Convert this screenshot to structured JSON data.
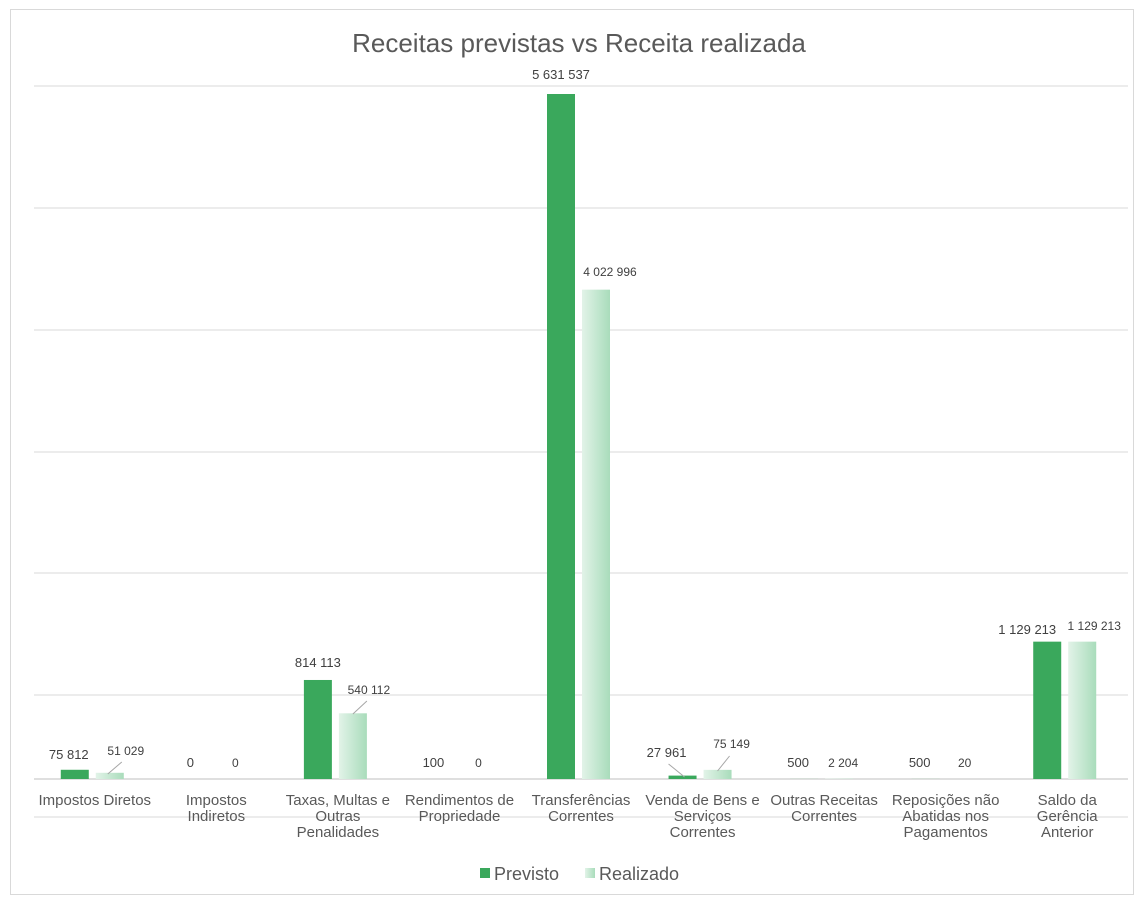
{
  "chart_data": {
    "type": "bar",
    "title": "Receitas previstas vs Receita realizada",
    "xlabel": "",
    "ylabel": "",
    "ylim": [
      0,
      5631537
    ],
    "grid": true,
    "legend_position": "bottom",
    "categories": [
      [
        "Impostos Diretos"
      ],
      [
        "Impostos",
        "Indiretos"
      ],
      [
        "Taxas, Multas e",
        "Outras",
        "Penalidades"
      ],
      [
        "Rendimentos de",
        "Propriedade"
      ],
      [
        "Transferências",
        "Correntes"
      ],
      [
        "Venda de Bens e",
        "Serviços",
        "Correntes"
      ],
      [
        "Outras Receitas",
        "Correntes"
      ],
      [
        "Reposições não",
        "Abatidas nos",
        "Pagamentos"
      ],
      [
        "Saldo da",
        "Gerência",
        "Anterior"
      ]
    ],
    "series": [
      {
        "name": "Previsto",
        "color": "#3aa85c",
        "values": [
          75812,
          0,
          814113,
          100,
          5631537,
          27961,
          500,
          500,
          1129213
        ],
        "labels": [
          "75 812",
          "0",
          "814 113",
          "100",
          "5 631 537",
          "27 961",
          "500",
          "500",
          "1 129 213"
        ]
      },
      {
        "name": "Realizado",
        "color": "#b8e2c6",
        "values": [
          51029,
          0,
          540112,
          0,
          4022996,
          75149,
          2204,
          20,
          1129213
        ],
        "labels": [
          "51 029",
          "0",
          "540 112",
          "0",
          "4 022 996",
          "75 149",
          "2 204",
          "20",
          "1 129 213"
        ]
      }
    ]
  }
}
